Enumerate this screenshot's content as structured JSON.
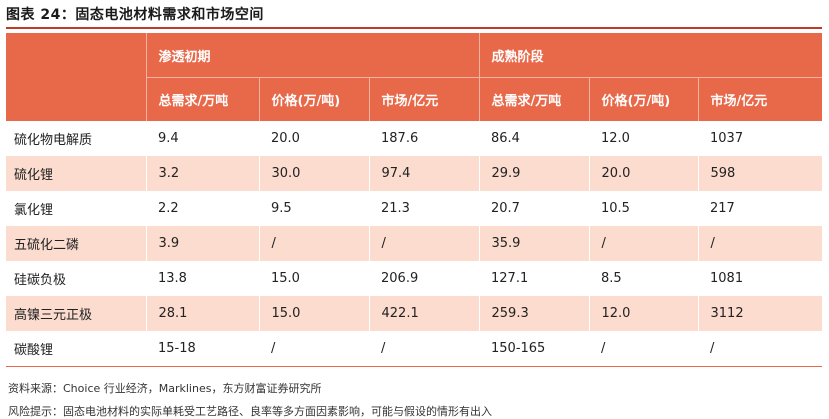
{
  "title": "图表 24：固态电池材料需求和市场空间",
  "groups": [
    "渗透初期",
    "成熟阶段"
  ],
  "subheaders": [
    "总需求/万吨",
    "价格(万/吨)",
    "市场/亿元",
    "总需求/万吨",
    "价格(万/吨)",
    "市场/亿元"
  ],
  "rows": [
    {
      "name": "硫化物电解质",
      "cells": [
        "9.4",
        "20.0",
        "187.6",
        "86.4",
        "12.0",
        "1037"
      ]
    },
    {
      "name": "硫化锂",
      "cells": [
        "3.2",
        "30.0",
        "97.4",
        "29.9",
        "20.0",
        "598"
      ]
    },
    {
      "name": "氯化锂",
      "cells": [
        "2.2",
        "9.5",
        "21.3",
        "20.7",
        "10.5",
        "217"
      ]
    },
    {
      "name": "五硫化二磷",
      "cells": [
        "3.9",
        "/",
        "/",
        "35.9",
        "/",
        "/"
      ]
    },
    {
      "name": "硅碳负极",
      "cells": [
        "13.8",
        "15.0",
        "206.9",
        "127.1",
        "8.5",
        "1081"
      ]
    },
    {
      "name": "高镍三元正极",
      "cells": [
        "28.1",
        "15.0",
        "422.1",
        "259.3",
        "12.0",
        "3112"
      ]
    },
    {
      "name": "碳酸锂",
      "cells": [
        "15-18",
        "/",
        "/",
        "150-165",
        "/",
        "/"
      ]
    }
  ],
  "source": "资料来源：Choice 行业经济，Marklines，东方财富证券研究所",
  "risk": "风险提示：固态电池材料的实际单耗受工艺路径、良率等多方面因素影响，可能与假设的情形有出入",
  "colors": {
    "header": "#e8694a",
    "alt_row": "#fbdccf",
    "rule": "#c0392b"
  }
}
